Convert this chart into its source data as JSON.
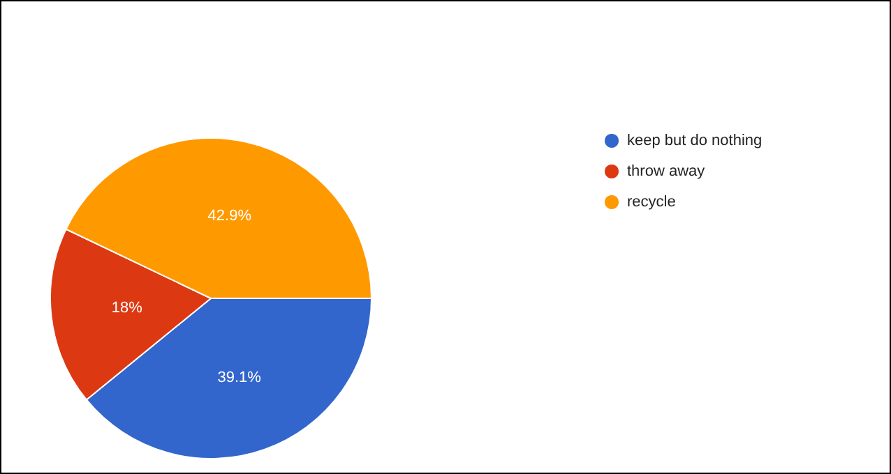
{
  "chart_data": {
    "type": "pie",
    "categories": [
      "keep but do nothing",
      "throw away",
      "recycle"
    ],
    "values": [
      39.1,
      18,
      42.9
    ],
    "colors": [
      "#3366cc",
      "#dc3912",
      "#ff9900"
    ],
    "value_labels": [
      "39.1%",
      "18%",
      "42.9%"
    ],
    "legend": "top right"
  }
}
